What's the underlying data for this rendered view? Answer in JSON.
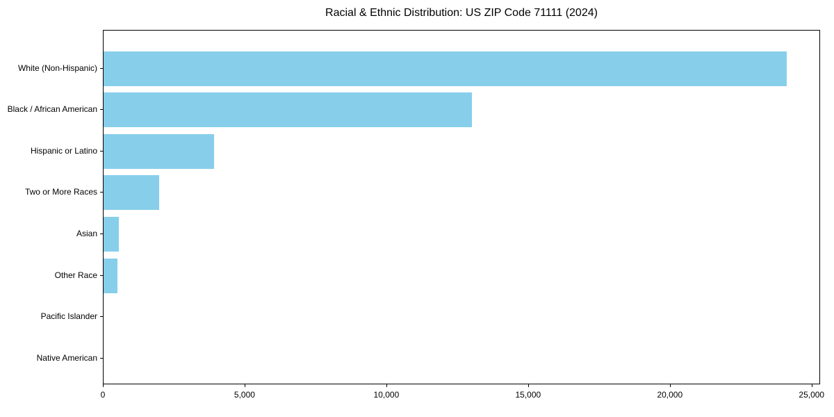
{
  "chart_data": {
    "type": "bar",
    "orientation": "horizontal",
    "title": "Racial & Ethnic Distribution: US ZIP Code 71111 (2024)",
    "categories": [
      "White (Non-Hispanic)",
      "Black / African American",
      "Hispanic or Latino",
      "Two or More Races",
      "Asian",
      "Other Race",
      "Pacific Islander",
      "Native American"
    ],
    "values": [
      24100,
      13000,
      3900,
      1950,
      540,
      480,
      0,
      0
    ],
    "xlabel": "",
    "ylabel": "",
    "xlim": [
      0,
      25300
    ],
    "xticks": [
      0,
      5000,
      10000,
      15000,
      20000,
      25000
    ],
    "xtick_labels": [
      "0",
      "5,000",
      "10,000",
      "15,000",
      "20,000",
      "25,000"
    ],
    "grid": false,
    "legend": false,
    "bar_color": "#87CEEB",
    "background_color": "#ffffff",
    "axis_color": "#000000"
  }
}
